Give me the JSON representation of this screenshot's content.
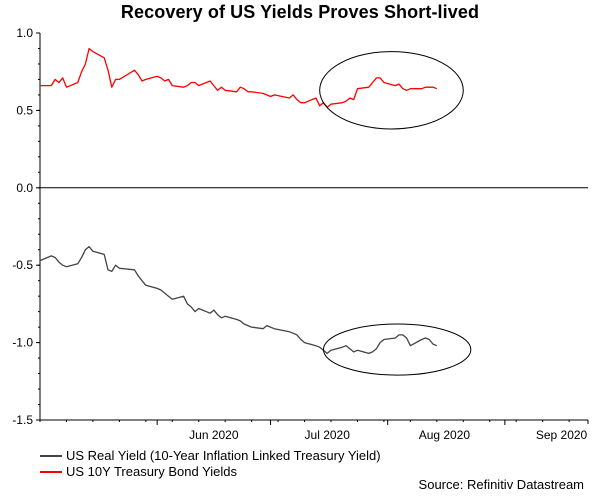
{
  "chart_data": {
    "type": "line",
    "title": "Recovery of US Yields Proves Short-lived",
    "source": "Source: Refinitiv Datastream",
    "ylim": [
      -1.5,
      1.0
    ],
    "yticks": [
      "1.0",
      "0.5",
      "0.0",
      "-0.5",
      "-1.0",
      "-1.5"
    ],
    "ytick_values": [
      1.0,
      0.5,
      0.0,
      -0.5,
      -1.0,
      -1.5
    ],
    "x_range": [
      "2020-05-01",
      "2020-09-23"
    ],
    "xticks": [
      {
        "label": "Jun 2020",
        "date": "2020-06-01"
      },
      {
        "label": "Jul 2020",
        "date": "2020-07-01"
      },
      {
        "label": "Aug 2020",
        "date": "2020-08-01"
      },
      {
        "label": "Sep 2020",
        "date": "2020-09-01"
      }
    ],
    "zero_line": true,
    "legend_placement": "bottom-left",
    "series": [
      {
        "name": "US Real Yield (10-Year Inflation Linked Treasury Yield)",
        "color": "#444444",
        "points": [
          [
            "2020-05-01",
            -0.47
          ],
          [
            "2020-05-04",
            -0.44
          ],
          [
            "2020-05-05",
            -0.45
          ],
          [
            "2020-05-06",
            -0.48
          ],
          [
            "2020-05-07",
            -0.5
          ],
          [
            "2020-05-08",
            -0.51
          ],
          [
            "2020-05-11",
            -0.49
          ],
          [
            "2020-05-12",
            -0.45
          ],
          [
            "2020-05-13",
            -0.4
          ],
          [
            "2020-05-14",
            -0.38
          ],
          [
            "2020-05-15",
            -0.41
          ],
          [
            "2020-05-18",
            -0.43
          ],
          [
            "2020-05-19",
            -0.53
          ],
          [
            "2020-05-20",
            -0.54
          ],
          [
            "2020-05-21",
            -0.5
          ],
          [
            "2020-05-22",
            -0.52
          ],
          [
            "2020-05-26",
            -0.53
          ],
          [
            "2020-05-27",
            -0.57
          ],
          [
            "2020-05-28",
            -0.6
          ],
          [
            "2020-05-29",
            -0.63
          ],
          [
            "2020-06-01",
            -0.65
          ],
          [
            "2020-06-02",
            -0.66
          ],
          [
            "2020-06-03",
            -0.68
          ],
          [
            "2020-06-04",
            -0.7
          ],
          [
            "2020-06-05",
            -0.72
          ],
          [
            "2020-06-08",
            -0.7
          ],
          [
            "2020-06-09",
            -0.75
          ],
          [
            "2020-06-10",
            -0.77
          ],
          [
            "2020-06-11",
            -0.8
          ],
          [
            "2020-06-12",
            -0.78
          ],
          [
            "2020-06-15",
            -0.81
          ],
          [
            "2020-06-16",
            -0.79
          ],
          [
            "2020-06-17",
            -0.82
          ],
          [
            "2020-06-18",
            -0.84
          ],
          [
            "2020-06-19",
            -0.83
          ],
          [
            "2020-06-22",
            -0.85
          ],
          [
            "2020-06-23",
            -0.86
          ],
          [
            "2020-06-24",
            -0.88
          ],
          [
            "2020-06-25",
            -0.89
          ],
          [
            "2020-06-26",
            -0.9
          ],
          [
            "2020-06-29",
            -0.91
          ],
          [
            "2020-06-30",
            -0.89
          ],
          [
            "2020-07-01",
            -0.9
          ],
          [
            "2020-07-02",
            -0.91
          ],
          [
            "2020-07-06",
            -0.93
          ],
          [
            "2020-07-07",
            -0.94
          ],
          [
            "2020-07-08",
            -0.95
          ],
          [
            "2020-07-09",
            -0.98
          ],
          [
            "2020-07-10",
            -1.0
          ],
          [
            "2020-07-13",
            -1.02
          ],
          [
            "2020-07-14",
            -1.03
          ],
          [
            "2020-07-15",
            -1.05
          ],
          [
            "2020-07-16",
            -1.07
          ],
          [
            "2020-07-17",
            -1.05
          ],
          [
            "2020-07-20",
            -1.03
          ],
          [
            "2020-07-21",
            -1.02
          ],
          [
            "2020-07-22",
            -1.04
          ],
          [
            "2020-07-23",
            -1.06
          ],
          [
            "2020-07-24",
            -1.05
          ],
          [
            "2020-07-27",
            -1.07
          ],
          [
            "2020-07-28",
            -1.06
          ],
          [
            "2020-07-29",
            -1.04
          ],
          [
            "2020-07-30",
            -1.0
          ],
          [
            "2020-07-31",
            -0.98
          ],
          [
            "2020-08-03",
            -0.97
          ],
          [
            "2020-08-04",
            -0.95
          ],
          [
            "2020-08-05",
            -0.95
          ],
          [
            "2020-08-06",
            -0.97
          ],
          [
            "2020-08-07",
            -1.02
          ],
          [
            "2020-08-10",
            -0.98
          ],
          [
            "2020-08-11",
            -0.97
          ],
          [
            "2020-08-12",
            -0.98
          ],
          [
            "2020-08-13",
            -1.01
          ],
          [
            "2020-08-14",
            -1.02
          ]
        ]
      },
      {
        "name": "US 10Y Treasury Bond Yields",
        "color": "#ff0000",
        "points": [
          [
            "2020-05-01",
            0.66
          ],
          [
            "2020-05-04",
            0.66
          ],
          [
            "2020-05-05",
            0.7
          ],
          [
            "2020-05-06",
            0.68
          ],
          [
            "2020-05-07",
            0.71
          ],
          [
            "2020-05-08",
            0.65
          ],
          [
            "2020-05-11",
            0.68
          ],
          [
            "2020-05-12",
            0.75
          ],
          [
            "2020-05-13",
            0.8
          ],
          [
            "2020-05-14",
            0.9
          ],
          [
            "2020-05-15",
            0.88
          ],
          [
            "2020-05-18",
            0.84
          ],
          [
            "2020-05-19",
            0.76
          ],
          [
            "2020-05-20",
            0.65
          ],
          [
            "2020-05-21",
            0.7
          ],
          [
            "2020-05-22",
            0.7
          ],
          [
            "2020-05-26",
            0.76
          ],
          [
            "2020-05-27",
            0.73
          ],
          [
            "2020-05-28",
            0.69
          ],
          [
            "2020-05-29",
            0.7
          ],
          [
            "2020-06-01",
            0.72
          ],
          [
            "2020-06-02",
            0.71
          ],
          [
            "2020-06-03",
            0.69
          ],
          [
            "2020-06-04",
            0.7
          ],
          [
            "2020-06-05",
            0.66
          ],
          [
            "2020-06-08",
            0.65
          ],
          [
            "2020-06-09",
            0.66
          ],
          [
            "2020-06-10",
            0.68
          ],
          [
            "2020-06-11",
            0.68
          ],
          [
            "2020-06-12",
            0.66
          ],
          [
            "2020-06-15",
            0.69
          ],
          [
            "2020-06-16",
            0.66
          ],
          [
            "2020-06-17",
            0.63
          ],
          [
            "2020-06-18",
            0.65
          ],
          [
            "2020-06-19",
            0.63
          ],
          [
            "2020-06-22",
            0.62
          ],
          [
            "2020-06-23",
            0.65
          ],
          [
            "2020-06-24",
            0.64
          ],
          [
            "2020-06-25",
            0.62
          ],
          [
            "2020-06-26",
            0.62
          ],
          [
            "2020-06-29",
            0.61
          ],
          [
            "2020-06-30",
            0.6
          ],
          [
            "2020-07-01",
            0.59
          ],
          [
            "2020-07-02",
            0.6
          ],
          [
            "2020-07-06",
            0.58
          ],
          [
            "2020-07-07",
            0.6
          ],
          [
            "2020-07-08",
            0.57
          ],
          [
            "2020-07-09",
            0.55
          ],
          [
            "2020-07-10",
            0.55
          ],
          [
            "2020-07-13",
            0.58
          ],
          [
            "2020-07-14",
            0.53
          ],
          [
            "2020-07-15",
            0.55
          ],
          [
            "2020-07-16",
            0.52
          ],
          [
            "2020-07-17",
            0.54
          ],
          [
            "2020-07-20",
            0.55
          ],
          [
            "2020-07-21",
            0.56
          ],
          [
            "2020-07-22",
            0.58
          ],
          [
            "2020-07-23",
            0.57
          ],
          [
            "2020-07-24",
            0.64
          ],
          [
            "2020-07-27",
            0.65
          ],
          [
            "2020-07-28",
            0.68
          ],
          [
            "2020-07-29",
            0.71
          ],
          [
            "2020-07-30",
            0.71
          ],
          [
            "2020-07-31",
            0.68
          ],
          [
            "2020-08-03",
            0.66
          ],
          [
            "2020-08-04",
            0.67
          ],
          [
            "2020-08-05",
            0.64
          ],
          [
            "2020-08-06",
            0.63
          ],
          [
            "2020-08-07",
            0.64
          ],
          [
            "2020-08-10",
            0.64
          ],
          [
            "2020-08-11",
            0.65
          ],
          [
            "2020-08-12",
            0.65
          ],
          [
            "2020-08-13",
            0.65
          ],
          [
            "2020-08-14",
            0.64
          ]
        ]
      }
    ],
    "annotations": [
      {
        "shape": "ellipse",
        "around_series": 1,
        "date_range": [
          "2020-07-14",
          "2020-08-21"
        ],
        "value_range": [
          0.38,
          0.88
        ]
      },
      {
        "shape": "ellipse",
        "around_series": 0,
        "date_range": [
          "2020-07-15",
          "2020-08-23"
        ],
        "value_range": [
          -1.21,
          -0.88
        ]
      }
    ]
  }
}
